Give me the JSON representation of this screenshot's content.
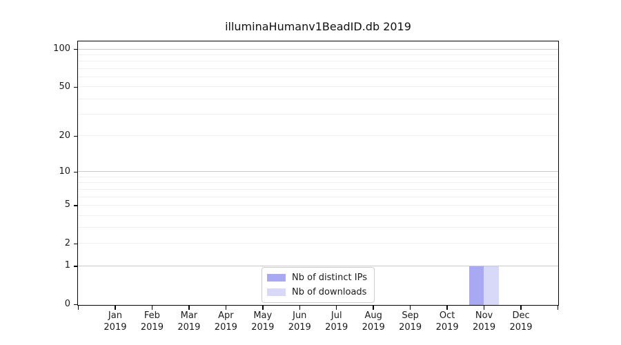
{
  "figure": {
    "title": "illuminaHumanv1BeadID.db 2019"
  },
  "chart_data": {
    "type": "bar",
    "title": "illuminaHumanv1BeadID.db 2019",
    "xlabel": "",
    "ylabel": "",
    "categories": [
      {
        "month": "Jan",
        "year": "2019"
      },
      {
        "month": "Feb",
        "year": "2019"
      },
      {
        "month": "Mar",
        "year": "2019"
      },
      {
        "month": "Apr",
        "year": "2019"
      },
      {
        "month": "May",
        "year": "2019"
      },
      {
        "month": "Jun",
        "year": "2019"
      },
      {
        "month": "Jul",
        "year": "2019"
      },
      {
        "month": "Aug",
        "year": "2019"
      },
      {
        "month": "Sep",
        "year": "2019"
      },
      {
        "month": "Oct",
        "year": "2019"
      },
      {
        "month": "Nov",
        "year": "2019"
      },
      {
        "month": "Dec",
        "year": "2019"
      }
    ],
    "series": [
      {
        "name": "Nb of distinct IPs",
        "color": "#a9a9f3",
        "values": [
          0,
          0,
          0,
          0,
          0,
          0,
          0,
          0,
          0,
          0,
          1,
          0
        ]
      },
      {
        "name": "Nb of downloads",
        "color": "#d8d8f8",
        "values": [
          0,
          0,
          0,
          0,
          0,
          0,
          0,
          0,
          0,
          0,
          1,
          0
        ]
      }
    ],
    "y_axis": {
      "scale": "log1p",
      "ticks": [
        0,
        1,
        2,
        5,
        10,
        20,
        50,
        100
      ],
      "major_gridlines": [
        1,
        10,
        100
      ],
      "minor_gridlines": [
        2,
        3,
        4,
        5,
        6,
        7,
        8,
        9,
        20,
        30,
        40,
        50,
        60,
        70,
        80,
        90
      ],
      "ylim": [
        0,
        115
      ]
    },
    "grid": true,
    "legend_position": "lower center",
    "colors": {
      "major_grid": "#c9c9c9",
      "minor_grid": "#f0f0f0",
      "spine": "#000000",
      "text": "#1a1a1a"
    }
  }
}
